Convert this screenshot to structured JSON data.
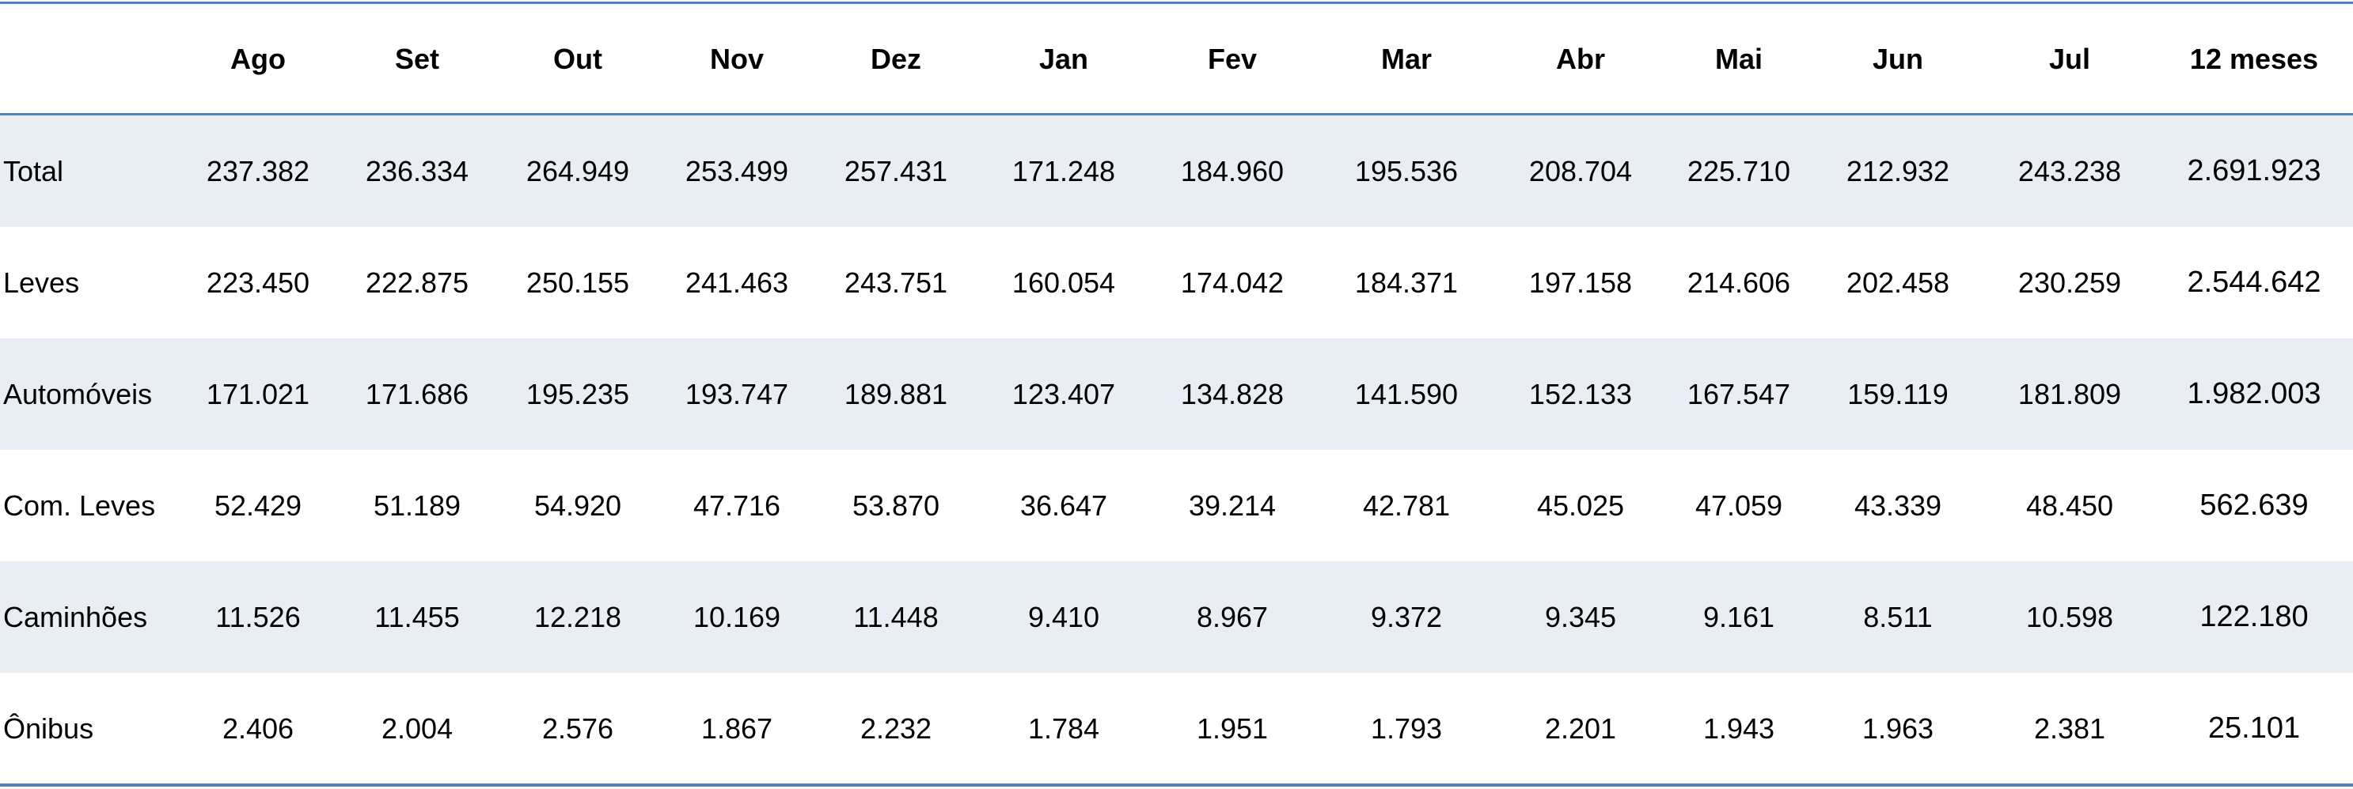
{
  "table": {
    "columns": [
      "Ago",
      "Set",
      "Out",
      "Nov",
      "Dez",
      "Jan",
      "Fev",
      "Mar",
      "Abr",
      "Mai",
      "Jun",
      "Jul",
      "12 meses"
    ],
    "rows": [
      {
        "label": "Total",
        "values": [
          "237.382",
          "236.334",
          "264.949",
          "253.499",
          "257.431",
          "171.248",
          "184.960",
          "195.536",
          "208.704",
          "225.710",
          "212.932",
          "243.238",
          "2.691.923"
        ]
      },
      {
        "label": "Leves",
        "values": [
          "223.450",
          "222.875",
          "250.155",
          "241.463",
          "243.751",
          "160.054",
          "174.042",
          "184.371",
          "197.158",
          "214.606",
          "202.458",
          "230.259",
          "2.544.642"
        ]
      },
      {
        "label": "Automóveis",
        "values": [
          "171.021",
          "171.686",
          "195.235",
          "193.747",
          "189.881",
          "123.407",
          "134.828",
          "141.590",
          "152.133",
          "167.547",
          "159.119",
          "181.809",
          "1.982.003"
        ]
      },
      {
        "label": "Com. Leves",
        "values": [
          "52.429",
          "51.189",
          "54.920",
          "47.716",
          "53.870",
          "36.647",
          "39.214",
          "42.781",
          "45.025",
          "47.059",
          "43.339",
          "48.450",
          "562.639"
        ]
      },
      {
        "label": "Caminhões",
        "values": [
          "11.526",
          "11.455",
          "12.218",
          "10.169",
          "11.448",
          "9.410",
          "8.967",
          "9.372",
          "9.345",
          "9.161",
          "8.511",
          "10.598",
          "122.180"
        ]
      },
      {
        "label": "Ônibus",
        "values": [
          "2.406",
          "2.004",
          "2.576",
          "1.867",
          "2.232",
          "1.784",
          "1.951",
          "1.793",
          "2.201",
          "1.943",
          "1.963",
          "2.381",
          "25.101"
        ]
      }
    ]
  }
}
